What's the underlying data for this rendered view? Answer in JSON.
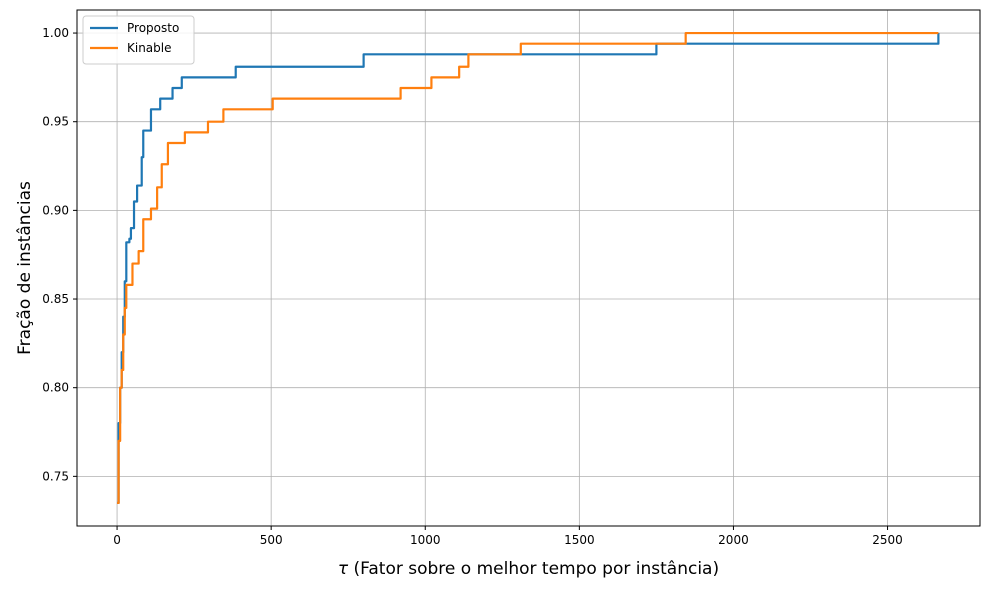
{
  "chart_data": {
    "type": "line",
    "xlabel_symbol": "τ",
    "xlabel": " (Fator sobre o melhor tempo por instância)",
    "ylabel": "Fração de instâncias",
    "xlim": [
      -130,
      2800
    ],
    "ylim": [
      0.722,
      1.013
    ],
    "xticks": [
      0,
      500,
      1000,
      1500,
      2000,
      2500
    ],
    "yticks": [
      0.75,
      0.8,
      0.85,
      0.9,
      0.95,
      1.0
    ],
    "xtick_labels": [
      "0",
      "500",
      "1000",
      "1500",
      "2000",
      "2500"
    ],
    "ytick_labels": [
      "0.75",
      "0.80",
      "0.85",
      "0.90",
      "0.95",
      "1.00"
    ],
    "grid": true,
    "legend_position": "top-left",
    "series": [
      {
        "name": "Proposto",
        "color": "#1f77b4",
        "x": [
          0,
          5,
          10,
          15,
          20,
          25,
          30,
          40,
          45,
          55,
          65,
          80,
          85,
          90,
          100,
          110,
          140,
          180,
          210,
          385,
          800,
          1750,
          2665
        ],
        "y": [
          0.735,
          0.78,
          0.8,
          0.82,
          0.84,
          0.86,
          0.882,
          0.884,
          0.89,
          0.905,
          0.914,
          0.93,
          0.945,
          0.945,
          0.945,
          0.957,
          0.963,
          0.969,
          0.975,
          0.981,
          0.988,
          0.994,
          1.0
        ]
      },
      {
        "name": "Kinable",
        "color": "#ff7f0e",
        "x": [
          0,
          5,
          10,
          15,
          20,
          25,
          30,
          50,
          70,
          85,
          110,
          130,
          145,
          165,
          220,
          295,
          345,
          505,
          920,
          1020,
          1110,
          1140,
          1310,
          1845,
          2665
        ],
        "y": [
          0.735,
          0.77,
          0.8,
          0.81,
          0.83,
          0.845,
          0.858,
          0.87,
          0.877,
          0.895,
          0.901,
          0.913,
          0.926,
          0.938,
          0.944,
          0.95,
          0.957,
          0.963,
          0.969,
          0.975,
          0.981,
          0.988,
          0.994,
          1.0,
          1.0
        ]
      }
    ]
  }
}
